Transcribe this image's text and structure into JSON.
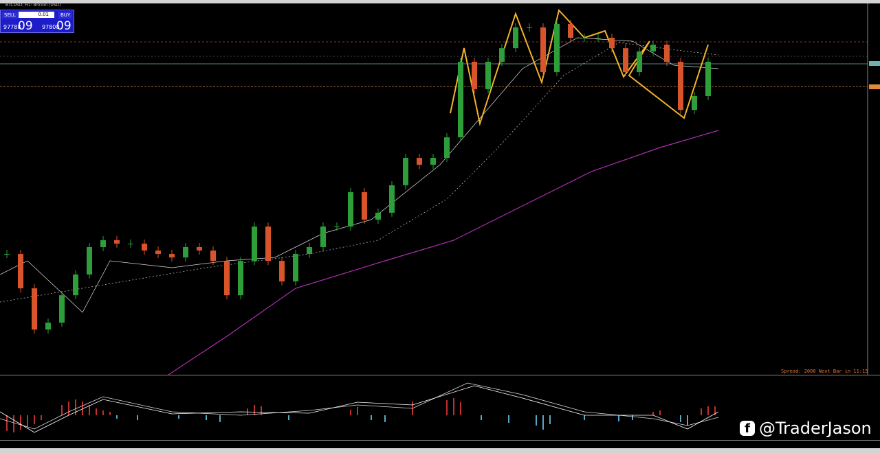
{
  "header": {
    "symbol": "BTCUSD, H1: Bitcoin (USD)"
  },
  "trade_panel": {
    "sell_label": "SELL",
    "buy_label": "BUY",
    "lot": "0.01",
    "sell_price": "97788",
    "sell_big": "09",
    "buy_price": "97808",
    "buy_big": "09"
  },
  "price_chart": {
    "ylim": [
      85000,
      100000
    ],
    "closes": [
      89860,
      88470,
      86800,
      87080,
      88190,
      89030,
      90140,
      90420,
      90280,
      90280,
      90000,
      89860,
      89720,
      90140,
      90000,
      89580,
      88190,
      89580,
      90970,
      89580,
      88750,
      89860,
      90140,
      90970,
      90970,
      92360,
      91250,
      91530,
      92640,
      93750,
      93470,
      93750,
      94580,
      97640,
      96530,
      97640,
      98190,
      99030,
      99030,
      97220,
      99170,
      98610,
      98610,
      98610,
      98190,
      97220,
      98060,
      98330,
      97640,
      95690,
      96250,
      97640
    ]
  },
  "status": {
    "spread": "Spread: 2000 Next Bar in 11:15"
  },
  "watermark": "@TraderJason"
}
